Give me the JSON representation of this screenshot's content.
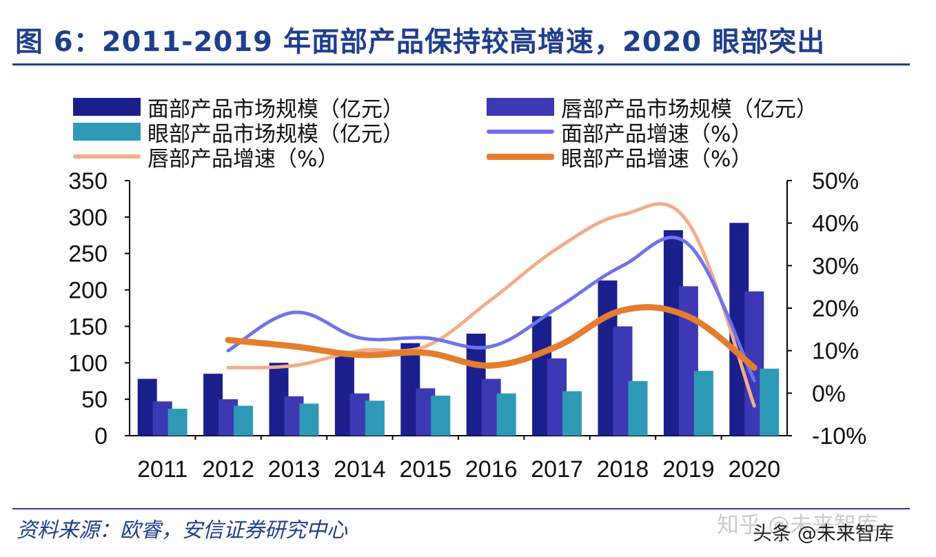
{
  "title": "图 6：2011-2019 年面部产品保持较高增速，2020 眼部突出",
  "source": "资料来源：欧睿，安信证券研究中心",
  "watermark": "知乎 @未来智库",
  "watermark2": "头条 @未来智库",
  "colors": {
    "face_bar": "#1a1f8c",
    "lip_bar": "#3d38b4",
    "eye_bar": "#2e9ab6",
    "face_line": "#6f73ea",
    "lip_line": "#f2ad8c",
    "eye_line": "#e47d2f",
    "title": "#1f3e8c"
  },
  "chart_data": {
    "type": "bar",
    "categories": [
      "2011",
      "2012",
      "2013",
      "2014",
      "2015",
      "2016",
      "2017",
      "2018",
      "2019",
      "2020"
    ],
    "y_left": {
      "ylim": [
        0,
        350
      ],
      "ticks": [
        "0",
        "50",
        "100",
        "150",
        "200",
        "250",
        "300",
        "350"
      ]
    },
    "y_right": {
      "ylim": [
        -10,
        50
      ],
      "ticks": [
        "-10%",
        "0%",
        "10%",
        "20%",
        "30%",
        "40%",
        "50%"
      ]
    },
    "bar_series": [
      {
        "name": "面部产品市场规模（亿元）",
        "color": "#1a1f8c",
        "values": [
          78,
          85,
          100,
          115,
          127,
          140,
          164,
          213,
          282,
          292
        ]
      },
      {
        "name": "唇部产品市场规模（亿元）",
        "color": "#3d38b4",
        "values": [
          47,
          50,
          54,
          58,
          65,
          78,
          106,
          150,
          205,
          198
        ]
      },
      {
        "name": "眼部产品市场规模（亿元）",
        "color": "#2e9ab6",
        "values": [
          37,
          41,
          44,
          48,
          55,
          58,
          61,
          75,
          89,
          92
        ]
      }
    ],
    "line_series": [
      {
        "name": "面部产品增速（%）",
        "color": "#6f73ea",
        "values": [
          null,
          10,
          19,
          13,
          13,
          11,
          20,
          30,
          35,
          3
        ]
      },
      {
        "name": "唇部产品增速（%）",
        "color": "#f2ad8c",
        "values": [
          null,
          6,
          6.5,
          10,
          11,
          22,
          34,
          42,
          40,
          -3
        ]
      },
      {
        "name": "眼部产品增速（%）",
        "color": "#e47d2f",
        "values": [
          null,
          12.5,
          11,
          9,
          9.5,
          6.5,
          11,
          19.5,
          18,
          6
        ]
      }
    ],
    "legend_position": "top",
    "grid": false
  }
}
